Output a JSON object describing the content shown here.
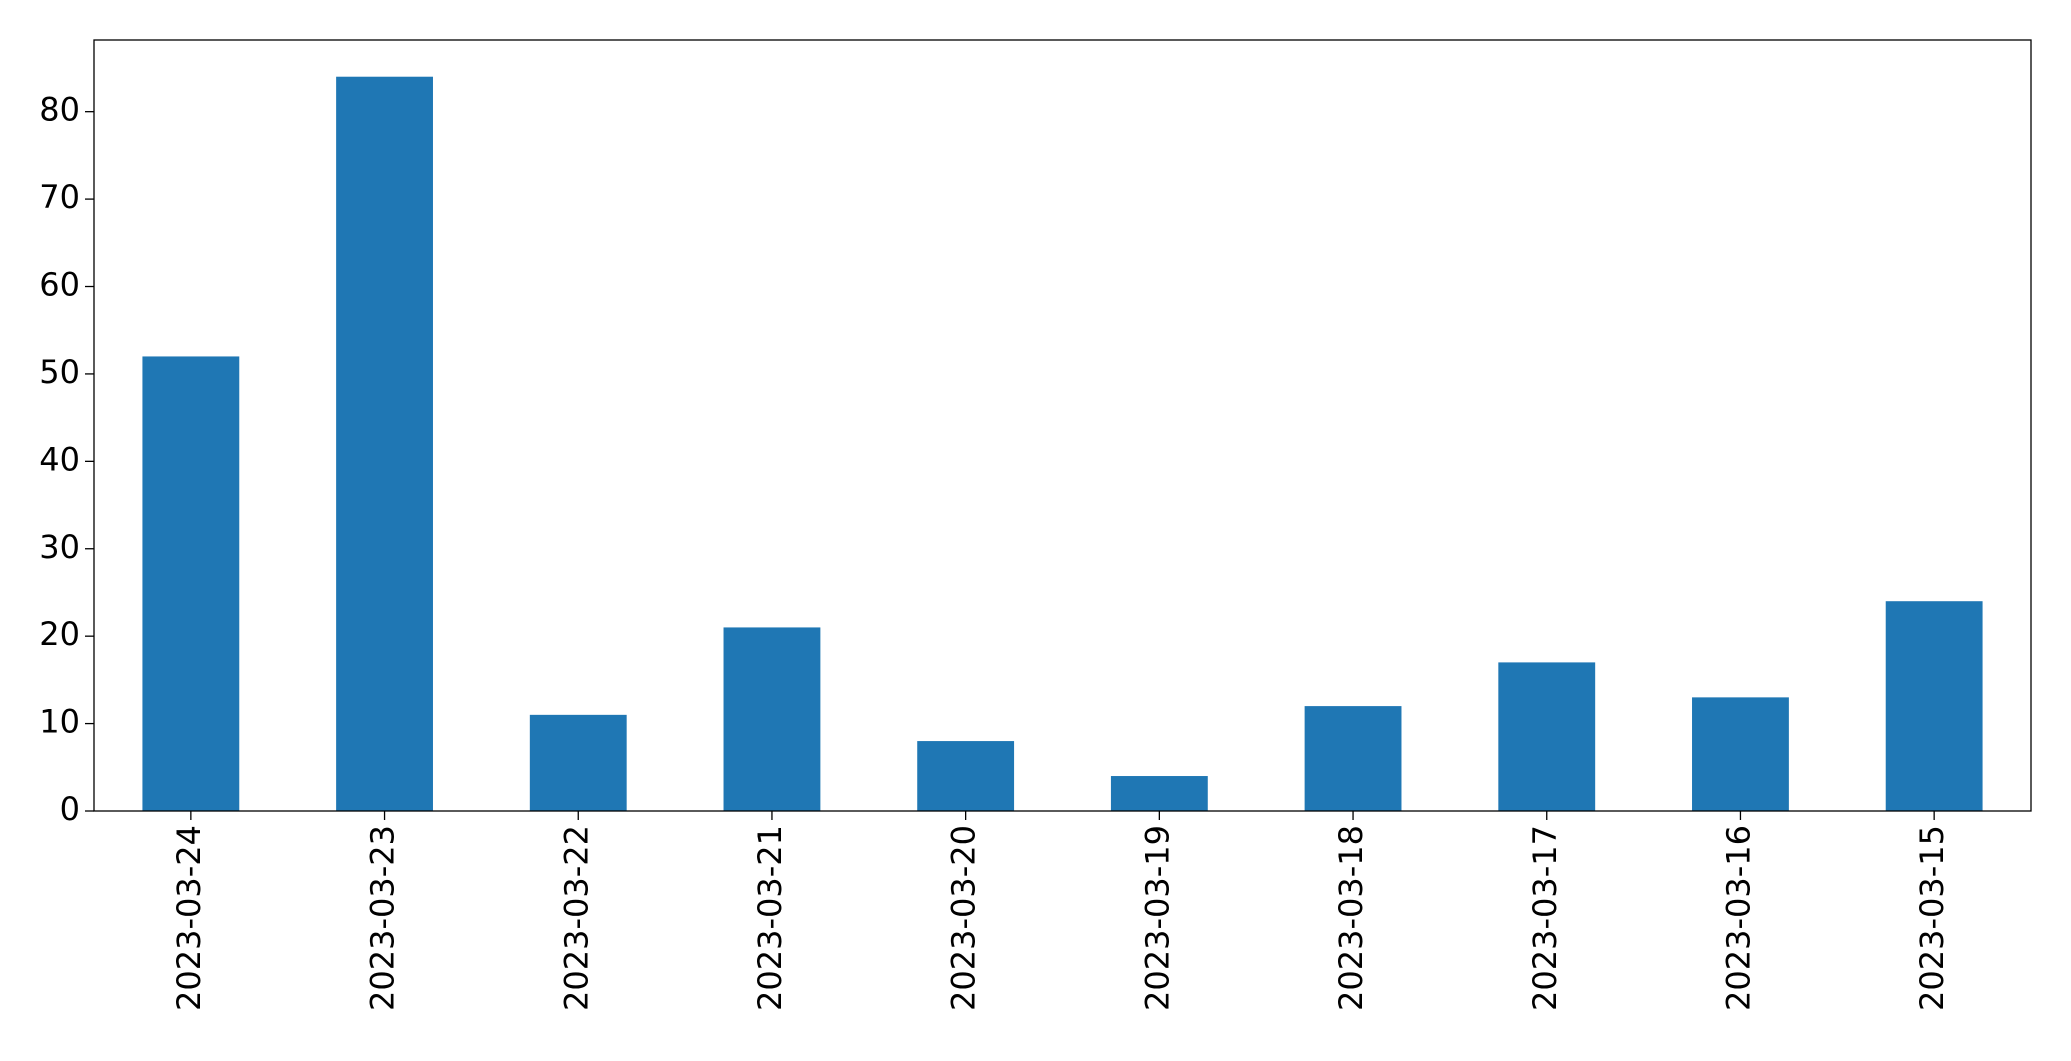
{
  "chart_data": {
    "type": "bar",
    "categories": [
      "2023-03-24",
      "2023-03-23",
      "2023-03-22",
      "2023-03-21",
      "2023-03-20",
      "2023-03-19",
      "2023-03-18",
      "2023-03-17",
      "2023-03-16",
      "2023-03-15"
    ],
    "values": [
      52,
      84,
      11,
      21,
      8,
      4,
      12,
      17,
      13,
      24
    ],
    "color": "#1f77b4",
    "ylim": [
      0,
      88.2
    ],
    "yticks": [
      0,
      10,
      20,
      30,
      40,
      50,
      60,
      70,
      80
    ],
    "grid": false
  }
}
